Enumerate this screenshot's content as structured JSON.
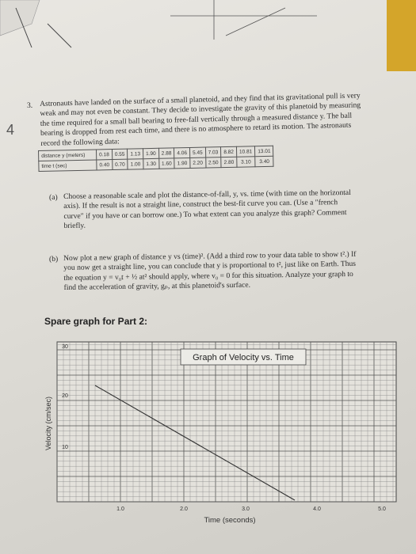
{
  "margin_note": "4",
  "problem": {
    "number": "3.",
    "text": "Astronauts have landed on the surface of a small planetoid, and they find that its gravitational pull is very weak and may not even be constant. They decide to investigate the gravity of this planetoid by measuring the time required for a small ball bearing to free-fall vertically through a measured distance y. The ball bearing is dropped from rest each time, and there is no atmosphere to retard its motion. The astronauts record the following data:"
  },
  "table": {
    "rows": [
      [
        "distance y (meters)",
        "0.18",
        "0.55",
        "1.13",
        "1.90",
        "2.88",
        "4.06",
        "5.45",
        "7.03",
        "8.82",
        "10.81",
        "13.01"
      ],
      [
        "time t (sec)",
        "0.40",
        "0.70",
        "1.00",
        "1.30",
        "1.60",
        "1.90",
        "2.20",
        "2.50",
        "2.80",
        "3.10",
        "3.40"
      ]
    ]
  },
  "part_a": {
    "label": "(a)",
    "text": "Choose a reasonable scale and plot the distance-of-fall, y, vs. time (with time on the horizontal axis). If the result is not a straight line, construct the best-fit curve you can. (Use a \"french curve\" if you have or can borrow one.) To what extent can you analyze this graph? Comment briefly."
  },
  "part_b": {
    "label": "(b)",
    "text": "Now plot a new graph of distance y vs (time)². (Add a third row to your data table to show t².) If you now get a straight line, you can conclude that y is proportional to t², just like on Earth. Thus the equation y = v₀t + ½ at² should apply, where v₀ = 0 for this situation. Analyze your graph to find the acceleration of gravity, gₚ, at this planetoid's surface."
  },
  "spare_heading": "Spare graph for Part 2:",
  "graph": {
    "title": "Graph of Velocity vs. Time",
    "y_label": "Velocity (cm/sec)",
    "x_label": "Time (seconds)",
    "yticks": [
      "10",
      "20",
      "30"
    ],
    "xticks": [
      "1.0",
      "2.0",
      "3.0",
      "4.0",
      "5.0"
    ]
  }
}
